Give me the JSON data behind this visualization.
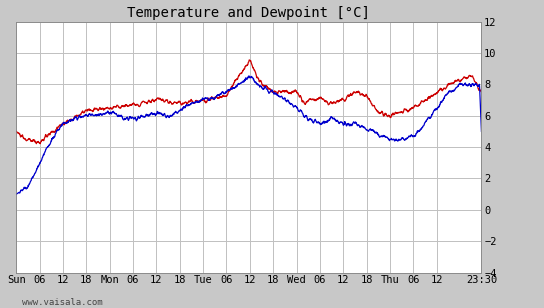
{
  "title": "Temperature and Dewpoint [°C]",
  "bg_color": "#c8c8c8",
  "plot_bg_color": "#ffffff",
  "grid_color": "#c0c0c0",
  "temp_color": "#cc0000",
  "dewp_color": "#0000cc",
  "ylim": [
    -4,
    12
  ],
  "yticks": [
    -4,
    -2,
    0,
    2,
    4,
    6,
    8,
    10,
    12
  ],
  "xtick_labels": [
    "Sun",
    "06",
    "12",
    "18",
    "Mon",
    "06",
    "12",
    "18",
    "Tue",
    "06",
    "12",
    "18",
    "Wed",
    "06",
    "12",
    "18",
    "Thu",
    "06",
    "12",
    "23:30"
  ],
  "watermark": "www.vaisala.com",
  "title_fontsize": 10,
  "tick_fontsize": 7.5
}
